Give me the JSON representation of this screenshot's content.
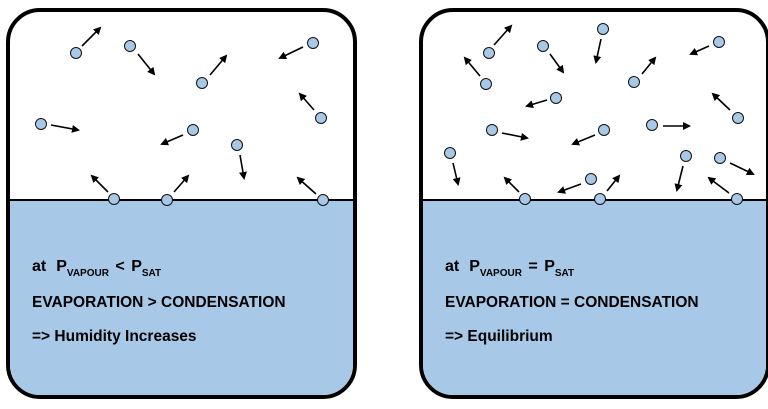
{
  "left_panel": {
    "prefix": "at",
    "p_letter_1": "P",
    "sub_1": "VAPOUR",
    "operator": "<",
    "p_letter_2": "P",
    "sub_2": "SAT",
    "line2": "EVAPORATION > CONDENSATION",
    "line3": "=> Humidity Increases"
  },
  "right_panel": {
    "prefix": "at",
    "p_letter_1": "P",
    "sub_1": "VAPOUR",
    "operator": "=",
    "p_letter_2": "P",
    "sub_2": "SAT",
    "line2": "EVAPORATION = CONDENSATION",
    "line3": "=> Equilibrium"
  },
  "colors": {
    "water": "#a8c8e8",
    "molecule_fill": "#a8c8e8",
    "outline": "#000000"
  }
}
